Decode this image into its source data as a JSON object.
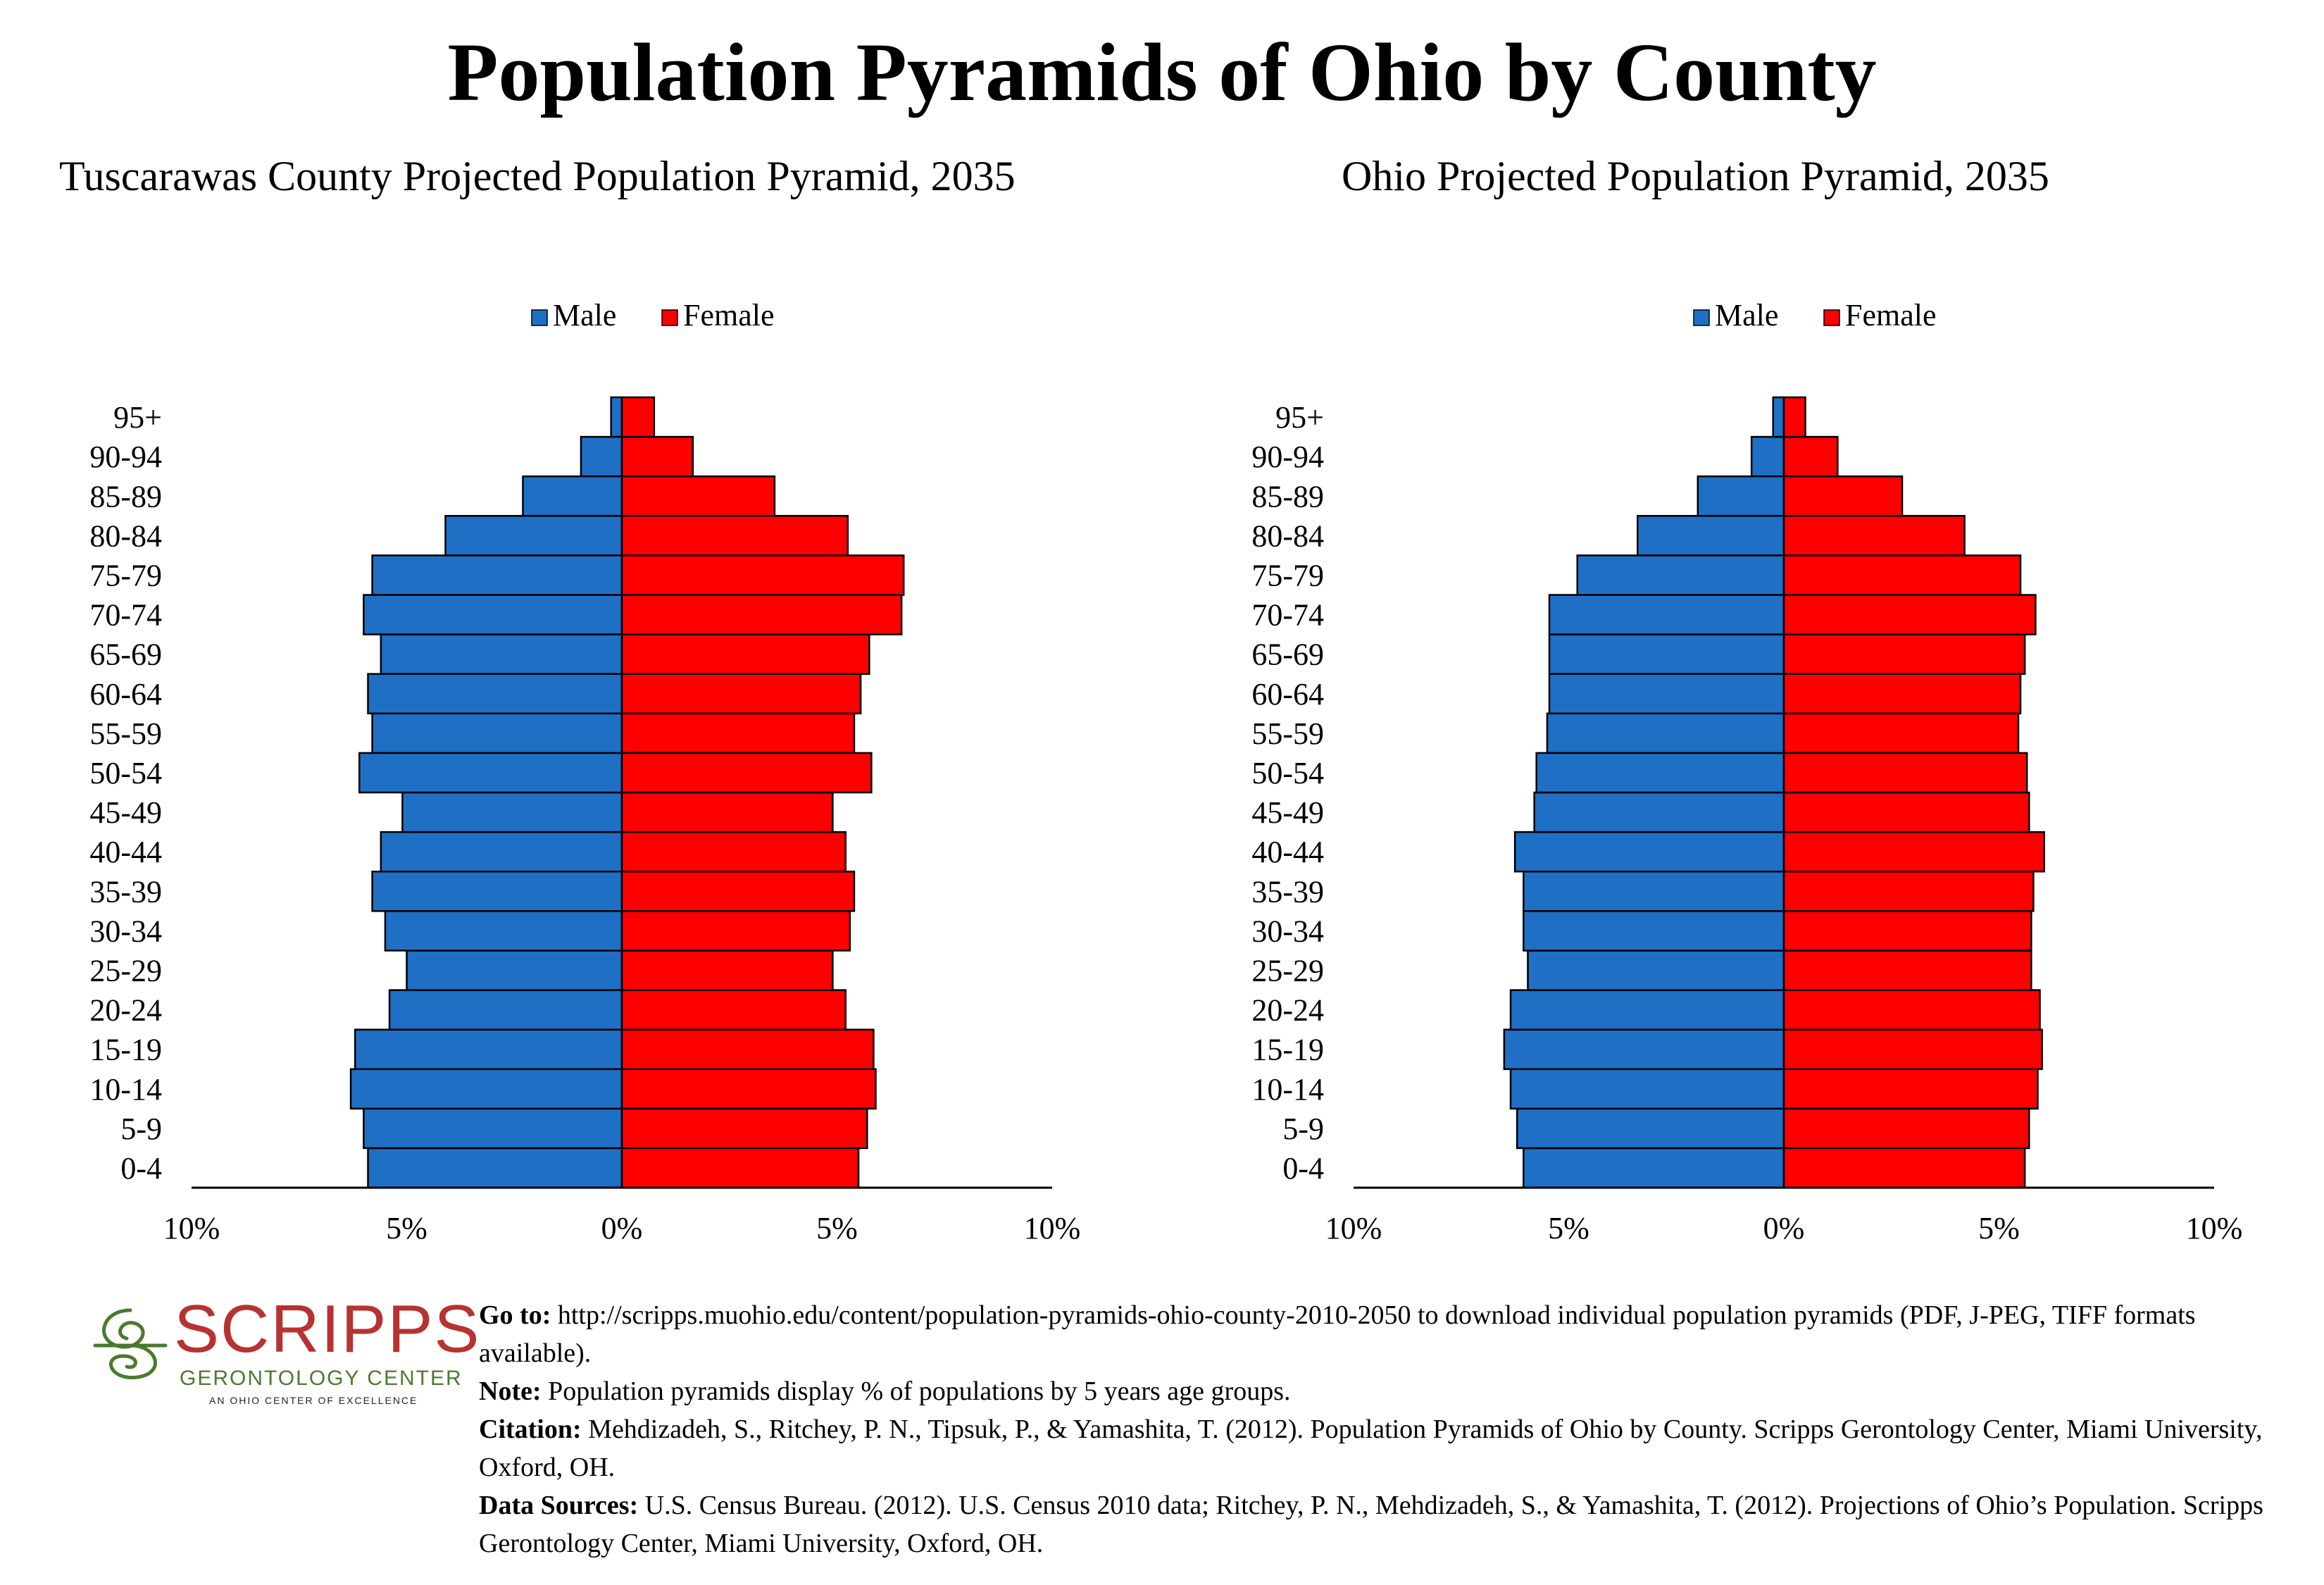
{
  "main_title": "Population Pyramids of Ohio by County",
  "colors": {
    "male": "#1f6fc5",
    "female": "#ff0000",
    "bar_stroke": "#000000"
  },
  "chart_data": [
    {
      "type": "bar",
      "orientation": "horizontal-pyramid",
      "title": "Tuscarawas County Projected Population Pyramid, 2035",
      "legend": [
        "Male",
        "Female"
      ],
      "legend_position": "top-center",
      "categories": [
        "0-4",
        "5-9",
        "10-14",
        "15-19",
        "20-24",
        "25-29",
        "30-34",
        "35-39",
        "40-44",
        "45-49",
        "50-54",
        "55-59",
        "60-64",
        "65-69",
        "70-74",
        "75-79",
        "80-84",
        "85-89",
        "90-94",
        "95+"
      ],
      "series": [
        {
          "name": "Male",
          "values": [
            5.9,
            6.0,
            6.3,
            6.2,
            5.4,
            5.0,
            5.5,
            5.8,
            5.6,
            5.1,
            6.1,
            5.8,
            5.9,
            5.6,
            6.0,
            5.8,
            4.1,
            2.3,
            0.95,
            0.25
          ]
        },
        {
          "name": "Female",
          "values": [
            5.5,
            5.7,
            5.9,
            5.85,
            5.2,
            4.9,
            5.3,
            5.4,
            5.2,
            4.9,
            5.8,
            5.4,
            5.55,
            5.75,
            6.5,
            6.55,
            5.25,
            3.55,
            1.65,
            0.75
          ]
        }
      ],
      "xlim": [
        -10,
        10
      ],
      "xticks": [
        "10%",
        "5%",
        "0%",
        "5%",
        "10%"
      ],
      "grid": false
    },
    {
      "type": "bar",
      "orientation": "horizontal-pyramid",
      "title": "Ohio Projected Population Pyramid, 2035",
      "legend": [
        "Male",
        "Female"
      ],
      "legend_position": "top-center",
      "categories": [
        "0-4",
        "5-9",
        "10-14",
        "15-19",
        "20-24",
        "25-29",
        "30-34",
        "35-39",
        "40-44",
        "45-49",
        "50-54",
        "55-59",
        "60-64",
        "65-69",
        "70-74",
        "75-79",
        "80-84",
        "85-89",
        "90-94",
        "95+"
      ],
      "series": [
        {
          "name": "Male",
          "values": [
            6.05,
            6.2,
            6.35,
            6.5,
            6.35,
            5.95,
            6.05,
            6.05,
            6.25,
            5.8,
            5.75,
            5.5,
            5.45,
            5.45,
            5.45,
            4.8,
            3.4,
            2.0,
            0.75,
            0.25
          ]
        },
        {
          "name": "Female",
          "values": [
            5.6,
            5.7,
            5.9,
            6.0,
            5.95,
            5.75,
            5.75,
            5.8,
            6.05,
            5.7,
            5.65,
            5.45,
            5.5,
            5.6,
            5.85,
            5.5,
            4.2,
            2.75,
            1.25,
            0.5
          ]
        }
      ],
      "xlim": [
        -10,
        10
      ],
      "xticks": [
        "10%",
        "5%",
        "0%",
        "5%",
        "10%"
      ],
      "grid": false
    }
  ],
  "footer": {
    "logo": {
      "word": "SCRIPPS",
      "subtitle": "GERONTOLOGY CENTER",
      "tagline": "AN OHIO CENTER OF EXCELLENCE"
    },
    "goto_label": "Go to:",
    "goto_text": " http://scripps.muohio.edu/content/population-pyramids-ohio-county-2010-2050 to download individual population pyramids (PDF, J-PEG, TIFF formats available).",
    "note_label": "Note:",
    "note_text": " Population pyramids display % of populations by 5 years age groups.",
    "citation_label": "Citation:",
    "citation_text": " Mehdizadeh, S., Ritchey, P. N., Tipsuk, P., & Yamashita, T. (2012). Population Pyramids of Ohio by County. Scripps Gerontology Center, Miami University, Oxford, OH.",
    "sources_label": "Data Sources:",
    "sources_text": " U.S. Census Bureau. (2012). U.S. Census 2010 data; Ritchey, P. N., Mehdizadeh, S., & Yamashita, T. (2012). Projections of Ohio’s Population. Scripps Gerontology Center, Miami University, Oxford, OH."
  }
}
